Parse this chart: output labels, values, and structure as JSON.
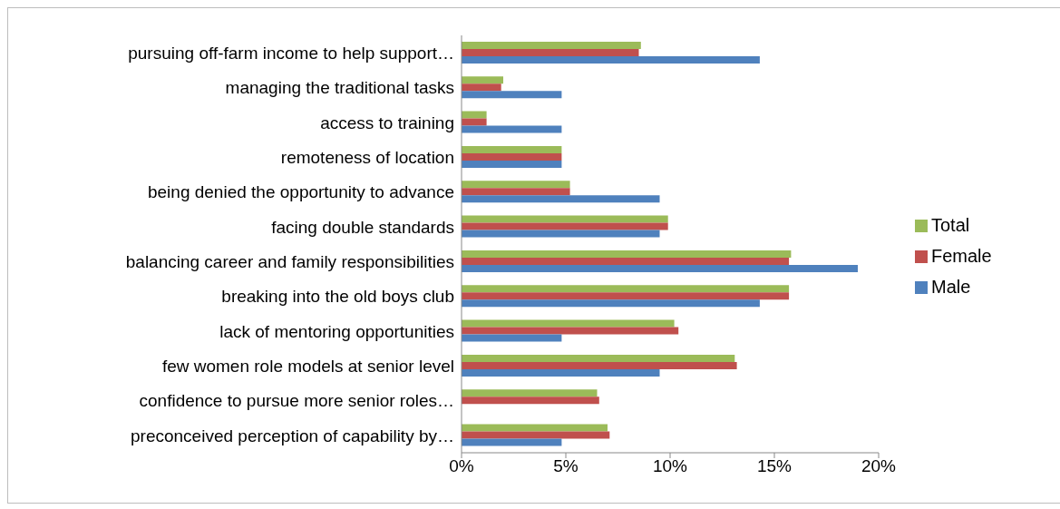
{
  "chart_data": {
    "type": "bar",
    "orientation": "horizontal",
    "legend": "right",
    "categories": [
      "pursuing off-farm income to help support…",
      "managing the traditional tasks",
      "access to training",
      "remoteness of location",
      "being denied the opportunity to advance",
      "facing double standards",
      "balancing career and family responsibilities",
      "breaking into the old boys club",
      "lack of mentoring opportunities",
      "few women role models at senior level",
      "confidence to pursue more senior roles…",
      "preconceived perception of capability by…"
    ],
    "series": [
      {
        "name": "Total",
        "color": "#9bbb59",
        "values": [
          8.6,
          2.0,
          1.2,
          4.8,
          5.2,
          9.9,
          15.8,
          15.7,
          10.2,
          13.1,
          6.5,
          7.0
        ]
      },
      {
        "name": "Female",
        "color": "#c0504d",
        "values": [
          8.5,
          1.9,
          1.2,
          4.8,
          5.2,
          9.9,
          15.7,
          15.7,
          10.4,
          13.2,
          6.6,
          7.1
        ]
      },
      {
        "name": "Male",
        "color": "#4f81bd",
        "values": [
          14.3,
          4.8,
          4.8,
          4.8,
          9.5,
          9.5,
          19.0,
          14.3,
          4.8,
          9.5,
          0,
          4.8
        ]
      }
    ],
    "xlim": [
      0,
      20
    ],
    "xticks": [
      {
        "value": 0,
        "label": "0%"
      },
      {
        "value": 5,
        "label": "5%"
      },
      {
        "value": 10,
        "label": "10%"
      },
      {
        "value": 15,
        "label": "15%"
      },
      {
        "value": 20,
        "label": "20%"
      }
    ]
  }
}
